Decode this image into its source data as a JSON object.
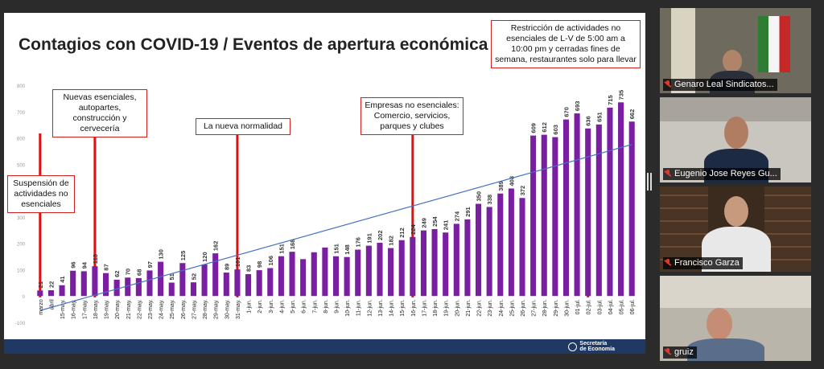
{
  "slide": {
    "title": "Contagios con COVID-19 / Eventos de apertura económica",
    "footer_logo_line1": "Secretaría",
    "footer_logo_line2": "de Economía"
  },
  "annotations": [
    {
      "id": "ann-suspension",
      "text": "Suspensión de actividades no esenciales"
    },
    {
      "id": "ann-nuevas",
      "text": "Nuevas esenciales, autopartes, construcción y cervecería"
    },
    {
      "id": "ann-normalidad",
      "text": "La nueva normalidad"
    },
    {
      "id": "ann-empresas",
      "text": "Empresas no esenciales: Comercio, servicios, parques y clubes"
    },
    {
      "id": "ann-restriccion",
      "text": "Restricción de actividades no esenciales de L-V de 5:00 am a 10:00 pm y cerradas fines de semana, restaurantes solo para llevar"
    }
  ],
  "chart_data": {
    "type": "bar",
    "title": "Contagios con COVID-19 / Eventos de apertura económica",
    "xlabel": "",
    "ylabel": "",
    "ylim": [
      -100,
      800
    ],
    "yticks": [
      -100,
      0,
      100,
      200,
      300,
      400,
      500,
      600,
      700,
      800
    ],
    "grid": false,
    "bar_color": "#7b1fa2",
    "trendline_color": "#4472c4",
    "trendline": [
      -55,
      575
    ],
    "categories": [
      "marzo",
      "abril",
      "15-may.",
      "16-may.",
      "17-may.",
      "18-may.",
      "19-may.",
      "20-may.",
      "21-may.",
      "22-may.",
      "23-may.",
      "24-may.",
      "25-may.",
      "26-may.",
      "27-may.",
      "28-may.",
      "29-may.",
      "30-may.",
      "31-may.",
      "1-jun.",
      "2-jun.",
      "3-jun.",
      "4-jun.",
      "5-jun.",
      "6-jun.",
      "7-jun.",
      "8-jun.",
      "9-jun.",
      "10-jun.",
      "11-jun.",
      "12-jun.",
      "13-jun.",
      "14-jun.",
      "15-jun.",
      "16-jun.",
      "17-jun.",
      "18-jun.",
      "19-jun.",
      "20-jun.",
      "21-jun.",
      "22-jun.",
      "23-jun.",
      "24-jun.",
      "25-jun.",
      "26-jun.",
      "27-jun.",
      "28-jun.",
      "29-jun.",
      "30-jun.",
      "01-jul.",
      "02-jul.",
      "03-jul.",
      "04-jul.",
      "05-jul.",
      "06-jul."
    ],
    "values": [
      21,
      22,
      41,
      96,
      94,
      113,
      87,
      62,
      70,
      68,
      97,
      130,
      51,
      125,
      52,
      120,
      162,
      89,
      101,
      83,
      98,
      106,
      151,
      168,
      140,
      166,
      184,
      151,
      148,
      176,
      191,
      202,
      182,
      212,
      224,
      249,
      254,
      241,
      274,
      291,
      350,
      338,
      389,
      408,
      372,
      609,
      612,
      603,
      670,
      693,
      636,
      651,
      715,
      735,
      662
    ],
    "labels": [
      "21",
      "22",
      "41",
      "96",
      "94",
      "113",
      "87",
      "62",
      "70",
      "68",
      "97",
      "130",
      "51",
      "125",
      "52",
      "120",
      "162",
      "89",
      "101",
      "83",
      "98",
      "106",
      "151",
      "168",
      "",
      "",
      "",
      "151",
      "148",
      "176",
      "191",
      "202",
      "182",
      "212",
      "224",
      "249",
      "254",
      "241",
      "274",
      "291",
      "350",
      "338",
      "389",
      "408",
      "372",
      "609",
      "612",
      "603",
      "670",
      "693",
      "636",
      "651",
      "715",
      "735",
      "662"
    ],
    "events": [
      {
        "category": "marzo",
        "annotation": "ann-suspension"
      },
      {
        "category": "18-may.",
        "annotation": "ann-nuevas"
      },
      {
        "category": "31-may.",
        "annotation": "ann-normalidad"
      },
      {
        "category": "16-jun.",
        "annotation": "ann-empresas"
      },
      {
        "category": "02-jul.",
        "annotation": "ann-restriccion"
      }
    ]
  },
  "participants": [
    {
      "name": "Genaro Leal Sindicatos...",
      "mic": "muted-mic-icon"
    },
    {
      "name": "Eugenio Jose Reyes Gu...",
      "mic": "muted-mic-icon"
    },
    {
      "name": "Francisco Garza",
      "mic": "muted-mic-icon"
    },
    {
      "name": "gruiz",
      "mic": "muted-mic-icon"
    }
  ]
}
